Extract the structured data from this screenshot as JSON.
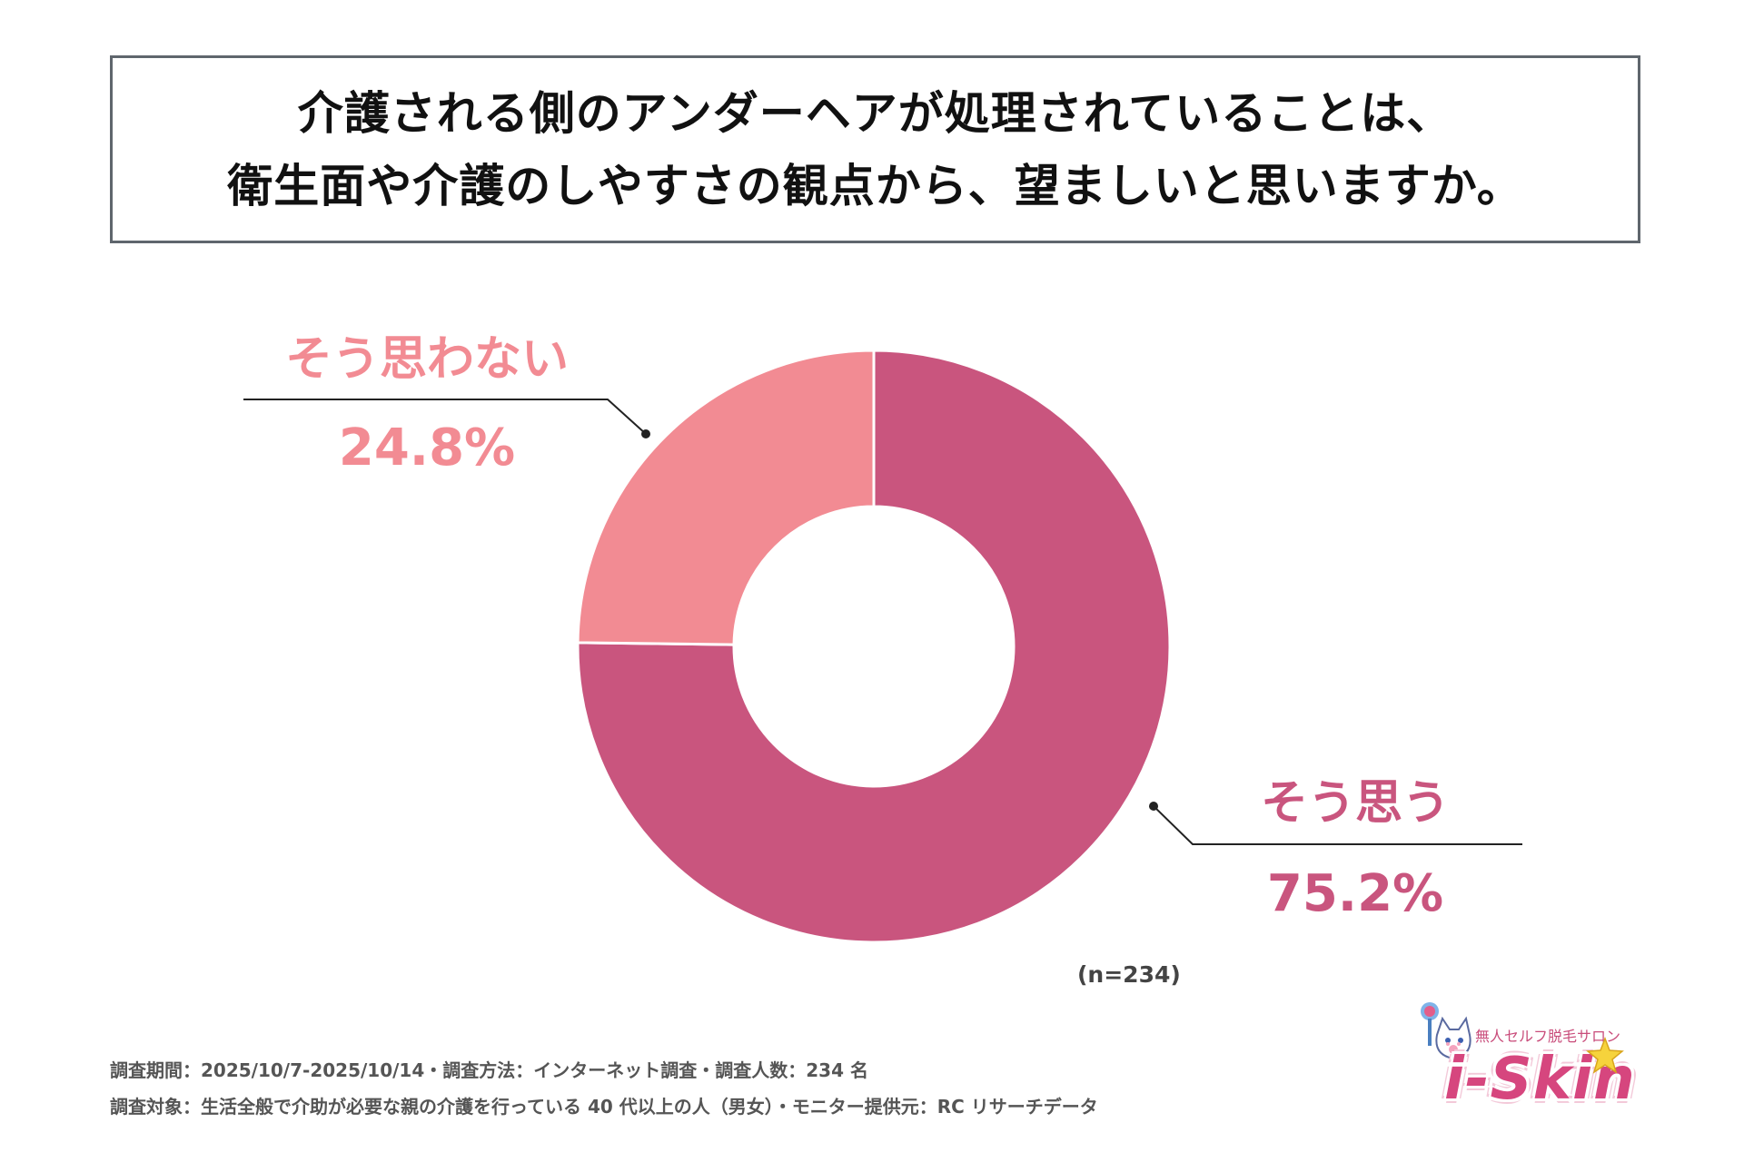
{
  "title": {
    "line1": "介護される側のアンダーヘアが処理されていることは、",
    "line2": "衛生面や介護のしやすさの観点から、望ましいと思いますか。"
  },
  "chart_data": {
    "type": "pie",
    "style": "donut",
    "categories": [
      "そう思う",
      "そう思わない"
    ],
    "values": [
      75.2,
      24.8
    ],
    "value_labels": [
      "75.2%",
      "24.8%"
    ],
    "colors": [
      "#c9557e",
      "#f28b93"
    ],
    "sample_size": "(n=234)"
  },
  "footnotes": {
    "line1": "調査期間：2025/10/7-2025/10/14・調査方法：インターネット調査・調査人数：234 名",
    "line2": "調査対象：生活全般で介助が必要な親の介護を行っている 40 代以上の人（男女）・モニター提供元：RC リサーチデータ"
  },
  "logo": {
    "tagline": "無人セルフ脱毛サロン",
    "wordmark": "i-Skin"
  }
}
